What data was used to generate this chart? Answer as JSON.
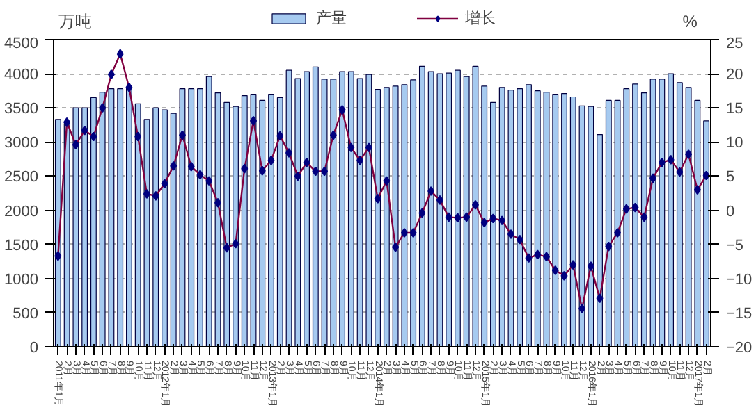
{
  "chart_data": {
    "type": "bar",
    "ylabel": "万吨",
    "y2label": "%",
    "categories": [
      "2011年1月",
      "2月",
      "3月",
      "4月",
      "5月",
      "6月",
      "7月",
      "8月",
      "9月",
      "10月",
      "11月",
      "12月",
      "2012年1月",
      "2月",
      "3月",
      "4月",
      "5月",
      "6月",
      "7月",
      "8月",
      "9月",
      "10月",
      "11月",
      "12月",
      "2013年1月",
      "2月",
      "3月",
      "4月",
      "5月",
      "6月",
      "7月",
      "8月",
      "9月",
      "10月",
      "11月",
      "12月",
      "2014年1月",
      "2月",
      "3月",
      "4月",
      "5月",
      "6月",
      "7月",
      "8月",
      "9月",
      "10月",
      "11月",
      "12月",
      "2015年1月",
      "2月",
      "3月",
      "4月",
      "5月",
      "6月",
      "7月",
      "8月",
      "9月",
      "10月",
      "11月",
      "12月",
      "2016年1月",
      "2月",
      "3月",
      "4月",
      "5月",
      "6月",
      "7月",
      "8月",
      "9月",
      "10月",
      "11月",
      "12月",
      "2017年1月",
      "2月"
    ],
    "series": [
      {
        "name": "产量",
        "color": "#a6caf0",
        "values": [
          3330,
          3270,
          3500,
          3500,
          3650,
          3730,
          3780,
          3780,
          3800,
          3560,
          3330,
          3500,
          3470,
          3420,
          3780,
          3780,
          3780,
          3960,
          3720,
          3580,
          3520,
          3680,
          3700,
          3610,
          3700,
          3650,
          4050,
          3930,
          4030,
          4100,
          3920,
          3920,
          4030,
          4030,
          3930,
          3990,
          3770,
          3800,
          3820,
          3840,
          3910,
          4110,
          4030,
          4000,
          4010,
          4050,
          3960,
          4110,
          3820,
          3580,
          3800,
          3760,
          3780,
          3840,
          3750,
          3730,
          3700,
          3710,
          3660,
          3530,
          3520,
          3110,
          3610,
          3610,
          3780,
          3850,
          3720,
          3920,
          3920,
          4000,
          3870,
          3800,
          3610,
          3310
        ]
      },
      {
        "name": "增长",
        "type": "line",
        "axis": "y2",
        "color": "#800040",
        "marker": "diamond",
        "line_style": "solid",
        "values": [
          -6.7,
          12.9,
          9.6,
          11.7,
          10.8,
          15.0,
          19.9,
          22.9,
          18.0,
          10.8,
          2.4,
          2.1,
          3.9,
          6.5,
          11.0,
          6.4,
          5.2,
          4.3,
          1.1,
          -5.5,
          -4.9,
          6.1,
          13.1,
          5.8,
          7.3,
          10.9,
          8.4,
          5.0,
          7.0,
          5.7,
          5.7,
          11.0,
          14.7,
          9.2,
          7.3,
          9.2,
          1.7,
          4.3,
          -5.4,
          -3.3,
          -3.3,
          -0.4,
          2.8,
          1.5,
          -1.0,
          -1.1,
          -1.0,
          0.8,
          -1.8,
          -1.2,
          -1.5,
          -3.5,
          -4.3,
          -7.0,
          -6.5,
          -6.8,
          -8.8,
          -9.6,
          -8.0,
          -14.4,
          -8.2,
          -12.9,
          -5.3,
          -3.3,
          0.2,
          0.4,
          -1.0,
          4.7,
          7.0,
          7.4,
          5.6,
          8.2,
          3.0,
          5.1
        ]
      }
    ],
    "ylim": [
      0,
      4500
    ],
    "yticks": [
      0,
      500,
      1000,
      1500,
      2000,
      2500,
      3000,
      3500,
      4000,
      4500
    ],
    "y2lim": [
      -20,
      25
    ],
    "y2ticks": [
      -20,
      -15,
      -10,
      -5,
      0,
      5,
      10,
      15,
      20,
      25
    ],
    "grid": "y",
    "legend": "top"
  }
}
